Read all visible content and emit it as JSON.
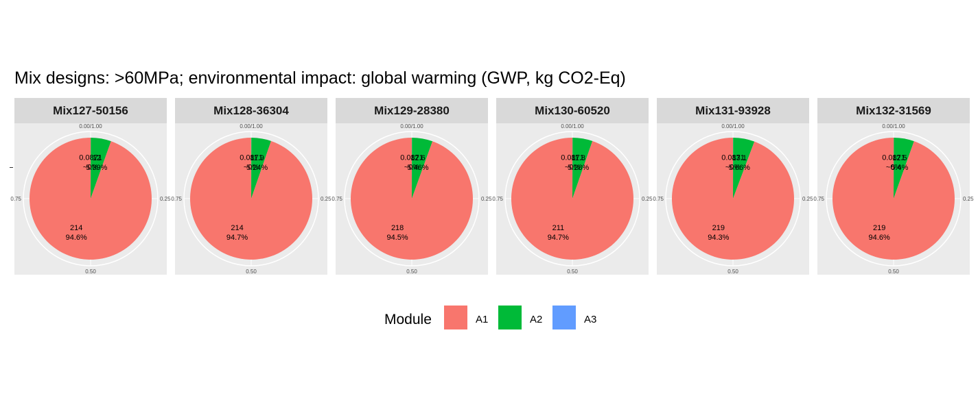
{
  "chart_data": {
    "type": "pie",
    "title": "Mix designs: >60MPa; environmental impact: global warming (GWP, kg CO2-Eq)",
    "legend": {
      "title": "Module",
      "position": "bottom",
      "entries": [
        {
          "name": "A1",
          "color": "#F8766D"
        },
        {
          "name": "A2",
          "color": "#00BA38"
        },
        {
          "name": "A3",
          "color": "#619CFF"
        }
      ]
    },
    "theta_ticks": [
      "0.00/1.00",
      "0.25",
      "0.50",
      "0.75"
    ],
    "facets": [
      {
        "name": "Mix127-50156",
        "slices": [
          {
            "module": "A1",
            "value": 214,
            "value_label": "214",
            "percent_label": "94.6%",
            "share": 0.946
          },
          {
            "module": "A2",
            "value": 12,
            "value_label": "12",
            "percent_label": "5.39%",
            "share": 0.0539
          },
          {
            "module": "A3",
            "value": 0.0871,
            "value_label": "0.0871",
            "percent_label": "~0%",
            "share": 0.0004
          }
        ]
      },
      {
        "name": "Mix128-36304",
        "slices": [
          {
            "module": "A1",
            "value": 214,
            "value_label": "214",
            "percent_label": "94.7%",
            "share": 0.947
          },
          {
            "module": "A2",
            "value": 11.9,
            "value_label": "11.9",
            "percent_label": "5.24%",
            "share": 0.0524
          },
          {
            "module": "A3",
            "value": 0.0871,
            "value_label": "0.0871",
            "percent_label": "~0%",
            "share": 0.0004
          }
        ]
      },
      {
        "name": "Mix129-28380",
        "slices": [
          {
            "module": "A1",
            "value": 218,
            "value_label": "218",
            "percent_label": "94.5%",
            "share": 0.945
          },
          {
            "module": "A2",
            "value": 12.6,
            "value_label": "12.6",
            "percent_label": "5.46%",
            "share": 0.0546
          },
          {
            "module": "A3",
            "value": 0.0871,
            "value_label": "0.0871",
            "percent_label": "~0%",
            "share": 0.0004
          }
        ]
      },
      {
        "name": "Mix130-60520",
        "slices": [
          {
            "module": "A1",
            "value": 211,
            "value_label": "211",
            "percent_label": "94.7%",
            "share": 0.947
          },
          {
            "module": "A2",
            "value": 11.8,
            "value_label": "11.8",
            "percent_label": "5.28%",
            "share": 0.0528
          },
          {
            "module": "A3",
            "value": 0.0871,
            "value_label": "0.0871",
            "percent_label": "~0%",
            "share": 0.0004
          }
        ]
      },
      {
        "name": "Mix131-93928",
        "slices": [
          {
            "module": "A1",
            "value": 219,
            "value_label": "219",
            "percent_label": "94.3%",
            "share": 0.943
          },
          {
            "module": "A2",
            "value": 13.1,
            "value_label": "13.1",
            "percent_label": "5.66%",
            "share": 0.0566
          },
          {
            "module": "A3",
            "value": 0.0871,
            "value_label": "0.0871",
            "percent_label": "~0%",
            "share": 0.0004
          }
        ]
      },
      {
        "name": "Mix132-31569",
        "slices": [
          {
            "module": "A1",
            "value": 219,
            "value_label": "219",
            "percent_label": "94.6%",
            "share": 0.946
          },
          {
            "module": "A2",
            "value": 12.5,
            "value_label": "12.5",
            "percent_label": "5.4%",
            "share": 0.054
          },
          {
            "module": "A3",
            "value": 0.0871,
            "value_label": "0.0871",
            "percent_label": "~0%",
            "share": 0.0004
          }
        ]
      }
    ]
  }
}
